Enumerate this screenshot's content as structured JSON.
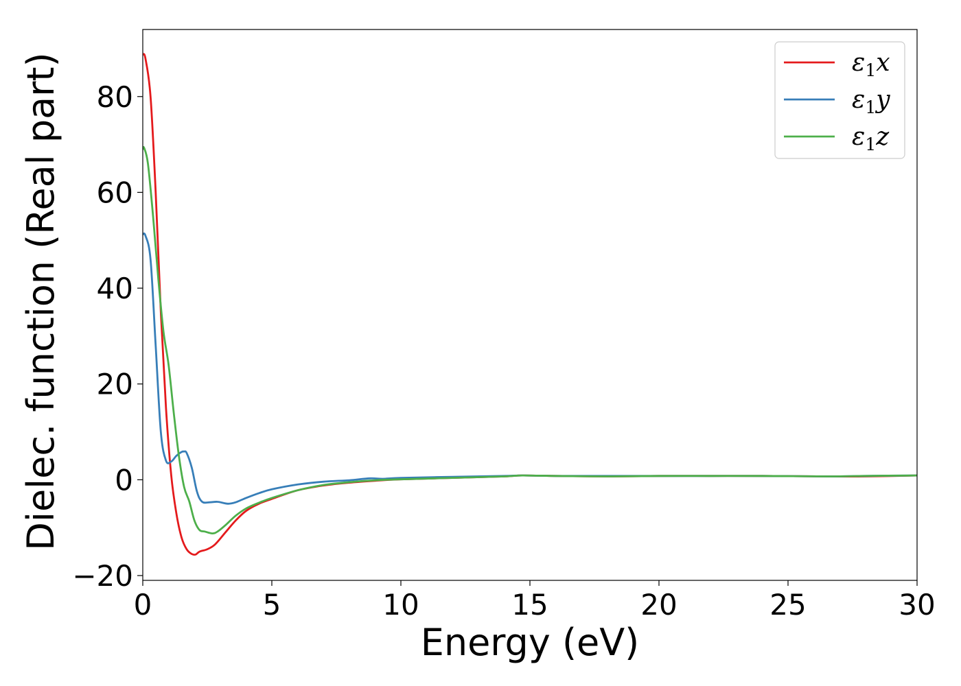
{
  "chart_data": {
    "type": "line",
    "title": "",
    "xlabel": "Energy (eV)",
    "ylabel": "Dielec. function (Real part)",
    "xlim": [
      0,
      30
    ],
    "ylim": [
      -21,
      94
    ],
    "xticks": [
      "0",
      "5",
      "10",
      "15",
      "20",
      "25",
      "30"
    ],
    "yticks": [
      "−20",
      "0",
      "20",
      "40",
      "60",
      "80"
    ],
    "grid": false,
    "legend_position": "top-right",
    "series": [
      {
        "name": "ε₁x",
        "legend_base": "ε",
        "legend_sub": "1",
        "legend_var": "x",
        "color": "#e41a1c",
        "x": [
          0,
          0.1,
          0.3,
          0.5,
          0.7,
          0.9,
          1.1,
          1.3,
          1.5,
          1.7,
          1.9,
          2.05,
          2.2,
          2.5,
          2.8,
          3.2,
          3.6,
          4.0,
          4.5,
          5.0,
          6.0,
          7.0,
          8.0,
          9.0,
          10.0,
          12.0,
          14.0,
          14.7,
          16.0,
          18.0,
          20.0,
          22.0,
          24.0,
          26.6,
          28.0,
          30.0
        ],
        "y": [
          88.8,
          88,
          80,
          60,
          35,
          15,
          1,
          -7,
          -12,
          -14.5,
          -15.5,
          -15.6,
          -15.0,
          -14.5,
          -13.5,
          -11,
          -8.5,
          -6.5,
          -5,
          -4,
          -2.2,
          -1.2,
          -0.6,
          -0.2,
          0.1,
          0.4,
          0.7,
          0.9,
          0.8,
          0.7,
          0.8,
          0.8,
          0.8,
          0.7,
          0.7,
          0.9
        ]
      },
      {
        "name": "ε₁y",
        "legend_base": "ε",
        "legend_sub": "1",
        "legend_var": "y",
        "color": "#377eb8",
        "x": [
          0,
          0.1,
          0.3,
          0.5,
          0.7,
          0.9,
          1.1,
          1.3,
          1.5,
          1.6,
          1.7,
          1.9,
          2.1,
          2.3,
          2.6,
          2.9,
          3.3,
          3.6,
          4.0,
          4.5,
          5.0,
          6.0,
          7.0,
          8.0,
          8.8,
          9.3,
          10.0,
          12.0,
          14.0,
          14.7,
          16.0,
          18.0,
          20.0,
          22.0,
          24.0,
          26.6,
          28.0,
          30.0
        ],
        "y": [
          51.2,
          51,
          46,
          28,
          10,
          4,
          3.8,
          5,
          5.8,
          5.9,
          5.6,
          2.5,
          -2.5,
          -4.6,
          -4.7,
          -4.6,
          -5,
          -4.7,
          -3.8,
          -2.8,
          -2,
          -1,
          -0.4,
          -0.1,
          0.3,
          0.2,
          0.4,
          0.6,
          0.8,
          0.9,
          0.8,
          0.8,
          0.8,
          0.8,
          0.8,
          0.7,
          0.8,
          0.9
        ]
      },
      {
        "name": "ε₁z",
        "legend_base": "ε",
        "legend_sub": "1",
        "legend_var": "z",
        "color": "#4daf4a",
        "x": [
          0,
          0.05,
          0.2,
          0.4,
          0.6,
          0.8,
          1.0,
          1.2,
          1.4,
          1.6,
          1.8,
          2.0,
          2.2,
          2.4,
          2.7,
          2.9,
          3.2,
          3.6,
          4.0,
          4.5,
          5.0,
          6.0,
          7.0,
          8.0,
          9.0,
          10.0,
          12.0,
          14.0,
          14.7,
          16.0,
          18.0,
          20.0,
          22.0,
          24.0,
          26.6,
          28.0,
          30.0
        ],
        "y": [
          69,
          69.3,
          66,
          55,
          42,
          31,
          24,
          14,
          5,
          -1.5,
          -4.5,
          -8.5,
          -10.5,
          -10.8,
          -11.2,
          -10.8,
          -9.5,
          -7.5,
          -6,
          -4.8,
          -3.8,
          -2.2,
          -1.1,
          -0.5,
          -0.1,
          0.1,
          0.4,
          0.7,
          0.9,
          0.8,
          0.7,
          0.8,
          0.8,
          0.8,
          0.7,
          0.8,
          0.9
        ]
      }
    ]
  }
}
